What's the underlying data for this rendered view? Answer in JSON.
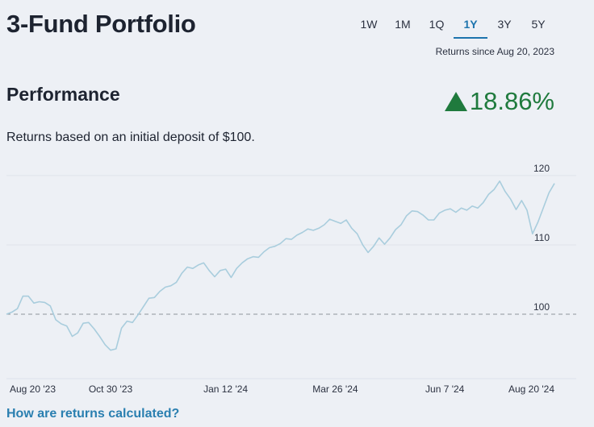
{
  "header": {
    "title": "3-Fund Portfolio",
    "tabs": [
      "1W",
      "1M",
      "1Q",
      "1Y",
      "3Y",
      "5Y"
    ],
    "active_tab": "1Y",
    "since": "Returns since Aug 20, 2023"
  },
  "performance": {
    "heading": "Performance",
    "change": "18.86%",
    "description": "Returns based on an initial deposit of $100."
  },
  "chart_data": {
    "type": "line",
    "color": "#a9cddd",
    "categories": [
      "Aug 20 '23",
      null,
      null,
      null,
      null,
      null,
      null,
      null,
      null,
      null,
      null,
      null,
      null,
      null,
      null,
      null,
      null,
      null,
      null,
      "Oct 30 '23",
      null,
      null,
      null,
      null,
      null,
      null,
      null,
      null,
      null,
      null,
      null,
      null,
      null,
      null,
      null,
      null,
      null,
      null,
      null,
      null,
      "Jan 12 '24",
      null,
      null,
      null,
      null,
      null,
      null,
      null,
      null,
      null,
      null,
      null,
      null,
      null,
      null,
      null,
      null,
      null,
      null,
      null,
      "Mar 26 '24",
      null,
      null,
      null,
      null,
      null,
      null,
      null,
      null,
      null,
      null,
      null,
      null,
      null,
      null,
      null,
      null,
      null,
      null,
      null,
      "Jun 7 '24",
      null,
      null,
      null,
      null,
      null,
      null,
      null,
      null,
      null,
      null,
      null,
      null,
      null,
      null,
      null,
      null,
      null,
      null,
      null,
      "Aug 20 '24"
    ],
    "values": [
      100.0,
      100.3,
      100.8,
      102.6,
      102.6,
      101.6,
      101.8,
      101.7,
      101.2,
      99.2,
      98.6,
      98.3,
      96.8,
      97.3,
      98.7,
      98.8,
      97.9,
      96.8,
      95.6,
      94.8,
      95.0,
      98.0,
      99.0,
      98.8,
      99.9,
      101.1,
      102.3,
      102.4,
      103.3,
      103.9,
      104.1,
      104.6,
      105.9,
      106.8,
      106.6,
      107.1,
      107.4,
      106.3,
      105.4,
      106.3,
      106.5,
      105.3,
      106.6,
      107.4,
      108.0,
      108.3,
      108.2,
      109.0,
      109.6,
      109.8,
      110.2,
      110.9,
      110.8,
      111.4,
      111.8,
      112.3,
      112.1,
      112.4,
      112.9,
      113.7,
      113.4,
      113.1,
      113.6,
      112.4,
      111.6,
      110.0,
      108.9,
      109.8,
      111.0,
      110.1,
      111.0,
      112.2,
      112.9,
      114.2,
      114.9,
      114.8,
      114.3,
      113.6,
      113.6,
      114.6,
      115.0,
      115.2,
      114.7,
      115.3,
      115.0,
      115.6,
      115.3,
      116.1,
      117.3,
      118.0,
      119.2,
      117.7,
      116.6,
      115.1,
      116.4,
      115.0,
      111.6,
      113.3,
      115.4,
      117.5,
      118.86
    ],
    "ylim": [
      90.7,
      121.5
    ],
    "yticks": [
      100,
      110,
      120
    ],
    "baseline": 100,
    "grid": true
  },
  "footer": {
    "link": "How are returns calculated?"
  }
}
